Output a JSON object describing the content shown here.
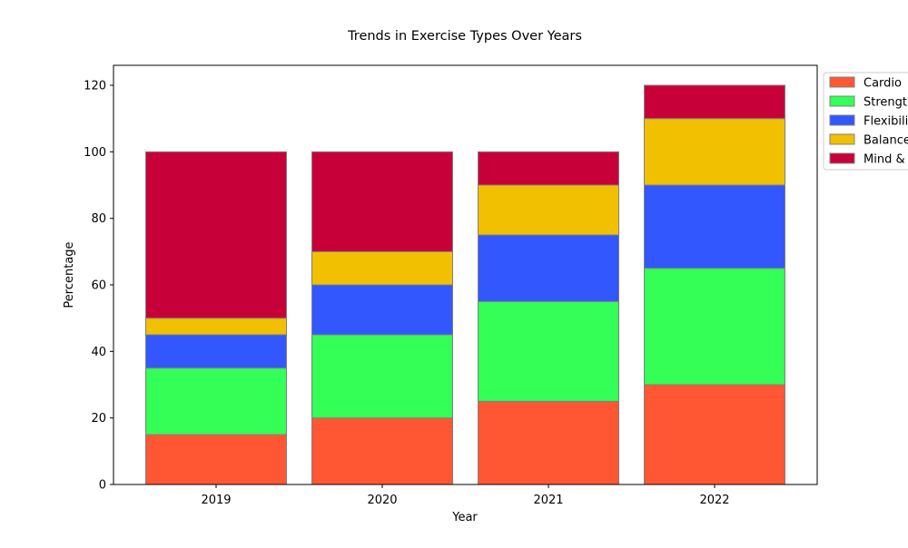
{
  "chart_data": {
    "type": "bar",
    "stacked": true,
    "title": "Trends in Exercise Types Over Years",
    "xlabel": "Year",
    "ylabel": "Percentage",
    "categories": [
      "2019",
      "2020",
      "2021",
      "2022"
    ],
    "series": [
      {
        "name": "Cardio",
        "values": [
          15,
          20,
          25,
          30
        ],
        "color": "#ff5733"
      },
      {
        "name": "Strength",
        "values": [
          20,
          25,
          30,
          35
        ],
        "color": "#33ff57"
      },
      {
        "name": "Flexibility",
        "values": [
          10,
          15,
          20,
          25
        ],
        "color": "#3357ff"
      },
      {
        "name": "Balance",
        "values": [
          5,
          10,
          15,
          20
        ],
        "color": "#f1c000"
      },
      {
        "name": "Mind & Body",
        "values": [
          50,
          30,
          10,
          10
        ],
        "color": "#c70039"
      }
    ],
    "ylim": [
      0,
      126
    ],
    "yticks": [
      0,
      20,
      40,
      60,
      80,
      100,
      120
    ],
    "bar_edge_color": "#808080",
    "grid": false,
    "legend_position": "upper-right-outside"
  }
}
